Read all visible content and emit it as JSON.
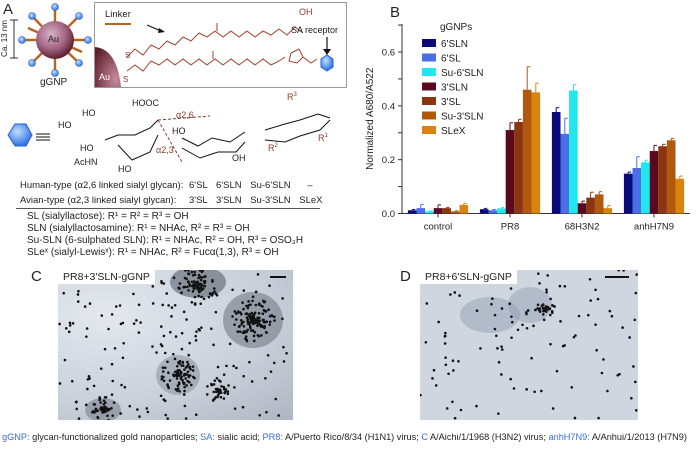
{
  "panel_a": {
    "letter": "A",
    "particle_label": "gGNP",
    "core_label": "Au",
    "size_label": "Ca. 13 nm",
    "linker_label": "Linker",
    "receptor_label": "SA receptor",
    "atoms": {
      "oh": "OH",
      "o": "O",
      "s": "S",
      "n": "N"
    },
    "glycan": {
      "cooh": "HOOC",
      "ho": "HO",
      "oh": "OH",
      "achn": "AcHN",
      "o": "O",
      "alpha26": "α2,6",
      "alpha23": "α2,3",
      "r1": "R1",
      "r2": "R2",
      "r3": "R3",
      "equiv": "≡"
    },
    "table": {
      "rows": [
        {
          "label": "Human-type (α2,6 linked sialyl glycan):",
          "cells": [
            "6'SL",
            "6'SLN",
            "Su-6'SLN",
            "–"
          ]
        },
        {
          "label": "Avian-type (α2,3 linked sialyl glycan):",
          "cells": [
            "3'SL",
            "3'SLN",
            "Su-3'SLN",
            "SLeX"
          ]
        }
      ]
    },
    "definitions": [
      "SL (sialyllactose):  R¹ = R² = R³ = OH",
      "SLN (sialyllactosamine):  R¹ = NHAc, R² = R³ = OH",
      "Su-SLN (6-sulphated SLN):  R¹ = NHAc, R² = OH, R³ = OSO₃H",
      "SLeˣ (sialyl-Lewisˣ):  R¹ = NHAc, R² = Fucα(1,3), R³ = OH"
    ]
  },
  "panel_b": {
    "letter": "B"
  },
  "panel_c": {
    "letter": "C",
    "label": "PR8+3'SLN-gGNP",
    "scale_bar": "100 nm"
  },
  "panel_d": {
    "letter": "D",
    "label": "PR8+6'SLN-gGNP",
    "scale_bar": "100 nm"
  },
  "caption": [
    {
      "key": "gGNP:",
      "text": " glycan-functionalized gold nanoparticles; "
    },
    {
      "key": "SA:",
      "text": " sialic acid; "
    },
    {
      "key": "PR8:",
      "text": " A/Puerto Rico/8/34 (H1N1) virus; "
    },
    {
      "key": "C",
      "text": " A/Aichi/1/1968 (H3N2) virus; "
    },
    {
      "key": "anhH7N9:",
      "text": " A/Anhui/1/2013 (H7N9)"
    }
  ],
  "chart_data": {
    "type": "bar",
    "title": "",
    "xlabel": "",
    "ylabel": "Normalized A680/A522",
    "ylim": [
      0,
      0.7
    ],
    "yticks": [
      "0.0",
      "0.2",
      "0.4",
      "0.6"
    ],
    "ytick_values": [
      0,
      0.2,
      0.4,
      0.6
    ],
    "legend_title": "gGNPs",
    "legend_position": "top-left",
    "categories": [
      "control",
      "PR8",
      "68H3N2",
      "anhH7N9"
    ],
    "series": [
      {
        "name": "6'SLN",
        "color": "#0a0a7a",
        "values": [
          0.012,
          0.016,
          0.377,
          0.148
        ],
        "errors": [
          0.003,
          0.003,
          0.016,
          0.006
        ]
      },
      {
        "name": "6'SL",
        "color": "#4a6ee8",
        "values": [
          0.02,
          0.012,
          0.296,
          0.169
        ],
        "errors": [
          0.014,
          0.003,
          0.058,
          0.042
        ]
      },
      {
        "name": "Su-6'SLN",
        "color": "#22e6ee",
        "values": [
          0.008,
          0.019,
          0.457,
          0.19
        ],
        "errors": [
          0.002,
          0.003,
          0.022,
          0.008
        ]
      },
      {
        "name": "3'SLN",
        "color": "#5a0a1e",
        "values": [
          0.02,
          0.31,
          0.038,
          0.232
        ],
        "errors": [
          0.012,
          0.027,
          0.008,
          0.021
        ]
      },
      {
        "name": "3'SL",
        "color": "#8a3410",
        "values": [
          0.02,
          0.34,
          0.059,
          0.25
        ],
        "errors": [
          0.003,
          0.01,
          0.02,
          0.007
        ]
      },
      {
        "name": "Su-3'SLN",
        "color": "#b0580e",
        "values": [
          0.008,
          0.46,
          0.071,
          0.272
        ],
        "errors": [
          0.002,
          0.085,
          0.01,
          0.007
        ]
      },
      {
        "name": "SLeX",
        "color": "#d8840e",
        "values": [
          0.032,
          0.45,
          0.02,
          0.129
        ],
        "errors": [
          0.006,
          0.034,
          0.01,
          0.01
        ]
      }
    ]
  }
}
